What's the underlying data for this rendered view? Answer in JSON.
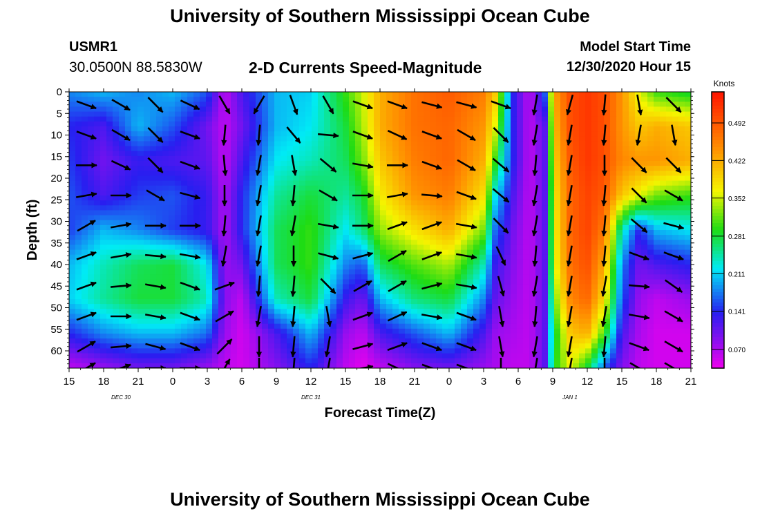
{
  "header": {
    "title_top": "University of Southern Mississippi Ocean Cube",
    "title_bottom": "University of Southern Mississippi Ocean Cube",
    "station_id": "USMR1",
    "station_coords": "30.0500N 88.5830W",
    "subtitle": "2-D Currents Speed-Magnitude",
    "model_label": "Model Start Time",
    "model_start": "12/30/2020 Hour 15"
  },
  "chart_data": {
    "type": "heatmap",
    "title": "2-D Currents Speed-Magnitude",
    "xlabel": "Forecast Time(Z)",
    "ylabel": "Depth (ft)",
    "x_tick_labels": [
      "15",
      "18",
      "21",
      "0",
      "3",
      "6",
      "9",
      "12",
      "15",
      "18",
      "21",
      "0",
      "3",
      "6",
      "9",
      "12",
      "15",
      "18",
      "21"
    ],
    "x_tick_hours_from_start": [
      0,
      3,
      6,
      9,
      12,
      15,
      18,
      21,
      24,
      27,
      30,
      33,
      36,
      39,
      42,
      45,
      48,
      51,
      54
    ],
    "date_labels": [
      {
        "text": "DEC 30",
        "hours_from_start": 4.5
      },
      {
        "text": "DEC 31",
        "hours_from_start": 21
      },
      {
        "text": "JAN 1",
        "hours_from_start": 43.5
      }
    ],
    "y_ticks": [
      0,
      5,
      10,
      15,
      20,
      25,
      30,
      35,
      40,
      45,
      50,
      55,
      60
    ],
    "ylim": [
      0,
      64
    ],
    "xlim_hours": [
      0,
      54
    ],
    "colorbar": {
      "unit": "Knots",
      "range": [
        0.035,
        0.55
      ],
      "ticks": [
        "0.070",
        "0.141",
        "0.211",
        "0.281",
        "0.352",
        "0.422",
        "0.492"
      ],
      "tick_values": [
        0.07,
        0.141,
        0.211,
        0.281,
        0.352,
        0.422,
        0.492
      ]
    },
    "speed_grid_note": "speed (knots) by depth row (ft) and forecast hour",
    "grid_depths": [
      0,
      8,
      16,
      24,
      32,
      40,
      48,
      56,
      64
    ],
    "grid_hours": [
      0,
      3,
      6,
      9,
      12,
      13.5,
      15,
      18,
      21,
      24,
      25.5,
      27,
      30,
      33,
      36,
      37,
      38.5,
      40,
      41.5,
      42,
      43.5,
      45,
      46.5,
      48,
      49.5,
      51,
      54
    ],
    "speed": [
      [
        0.18,
        0.2,
        0.18,
        0.2,
        0.16,
        0.06,
        0.12,
        0.2,
        0.21,
        0.3,
        0.35,
        0.42,
        0.47,
        0.49,
        0.46,
        0.4,
        0.14,
        0.06,
        0.18,
        0.42,
        0.5,
        0.52,
        0.5,
        0.44,
        0.36,
        0.3,
        0.28
      ],
      [
        0.14,
        0.12,
        0.2,
        0.16,
        0.1,
        0.06,
        0.1,
        0.2,
        0.22,
        0.28,
        0.34,
        0.42,
        0.47,
        0.48,
        0.44,
        0.36,
        0.14,
        0.06,
        0.12,
        0.4,
        0.5,
        0.52,
        0.5,
        0.44,
        0.4,
        0.42,
        0.4
      ],
      [
        0.15,
        0.1,
        0.13,
        0.12,
        0.11,
        0.06,
        0.12,
        0.22,
        0.24,
        0.27,
        0.32,
        0.4,
        0.46,
        0.48,
        0.42,
        0.3,
        0.14,
        0.06,
        0.12,
        0.38,
        0.49,
        0.52,
        0.5,
        0.45,
        0.44,
        0.44,
        0.42
      ],
      [
        0.16,
        0.12,
        0.15,
        0.16,
        0.13,
        0.07,
        0.14,
        0.25,
        0.28,
        0.25,
        0.28,
        0.37,
        0.44,
        0.46,
        0.38,
        0.22,
        0.12,
        0.06,
        0.12,
        0.36,
        0.48,
        0.51,
        0.49,
        0.4,
        0.36,
        0.32,
        0.3
      ],
      [
        0.15,
        0.2,
        0.18,
        0.15,
        0.13,
        0.07,
        0.14,
        0.27,
        0.3,
        0.22,
        0.26,
        0.33,
        0.38,
        0.42,
        0.32,
        0.17,
        0.1,
        0.06,
        0.12,
        0.35,
        0.48,
        0.51,
        0.46,
        0.24,
        0.14,
        0.2,
        0.22
      ],
      [
        0.2,
        0.24,
        0.27,
        0.28,
        0.22,
        0.08,
        0.1,
        0.27,
        0.3,
        0.18,
        0.16,
        0.27,
        0.31,
        0.34,
        0.24,
        0.13,
        0.09,
        0.06,
        0.12,
        0.34,
        0.47,
        0.5,
        0.42,
        0.18,
        0.1,
        0.12,
        0.14
      ],
      [
        0.21,
        0.25,
        0.28,
        0.28,
        0.24,
        0.09,
        0.06,
        0.24,
        0.28,
        0.13,
        0.1,
        0.2,
        0.26,
        0.28,
        0.18,
        0.11,
        0.08,
        0.06,
        0.12,
        0.3,
        0.45,
        0.48,
        0.38,
        0.16,
        0.08,
        0.06,
        0.08
      ],
      [
        0.14,
        0.18,
        0.2,
        0.2,
        0.17,
        0.08,
        0.05,
        0.12,
        0.2,
        0.08,
        0.06,
        0.12,
        0.16,
        0.2,
        0.12,
        0.08,
        0.07,
        0.06,
        0.12,
        0.26,
        0.4,
        0.42,
        0.3,
        0.12,
        0.07,
        0.05,
        0.05
      ],
      [
        0.06,
        0.08,
        0.1,
        0.1,
        0.08,
        0.06,
        0.05,
        0.09,
        0.14,
        0.06,
        0.04,
        0.06,
        0.09,
        0.1,
        0.08,
        0.07,
        0.06,
        0.06,
        0.12,
        0.28,
        0.36,
        0.28,
        0.16,
        0.09,
        0.06,
        0.05,
        0.05
      ]
    ],
    "vector_columns_hours": [
      1.5,
      4.5,
      7.5,
      10.5,
      13.5,
      16.5,
      19.5,
      22.5,
      25.5,
      28.5,
      31.5,
      34.5,
      37.5,
      40.5,
      43.5,
      46.5,
      49.5,
      52.5
    ],
    "vector_rows_depth": [
      3,
      10,
      17,
      24,
      31,
      38,
      45,
      52,
      59,
      64
    ],
    "vector_angles_deg": [
      [
        -20,
        -30,
        -45,
        -25,
        -60,
        -120,
        -70,
        -60,
        -20,
        -20,
        -15,
        -15,
        -20,
        -100,
        -105,
        -95,
        -80,
        -45
      ],
      [
        -20,
        -30,
        -45,
        -20,
        -95,
        -95,
        -50,
        -5,
        -20,
        -25,
        -20,
        -30,
        -45,
        -100,
        -100,
        -95,
        -100,
        -80
      ],
      [
        0,
        -25,
        -45,
        -20,
        -85,
        -100,
        -80,
        -40,
        -10,
        0,
        -20,
        -30,
        -40,
        -95,
        -100,
        -90,
        -45,
        -45
      ],
      [
        10,
        0,
        -30,
        -15,
        -90,
        -100,
        -95,
        -30,
        0,
        10,
        -5,
        -20,
        -40,
        -100,
        -100,
        -95,
        -45,
        -30
      ],
      [
        30,
        10,
        0,
        0,
        -95,
        -100,
        -100,
        -10,
        0,
        20,
        20,
        -10,
        -45,
        -100,
        -100,
        -95,
        -40,
        -15
      ],
      [
        20,
        10,
        -5,
        -10,
        -100,
        -100,
        -90,
        -15,
        15,
        30,
        20,
        -10,
        -65,
        -95,
        -100,
        -95,
        -20,
        -20
      ],
      [
        20,
        5,
        -10,
        -20,
        20,
        -95,
        -95,
        -45,
        30,
        30,
        15,
        -10,
        -75,
        -100,
        -100,
        -100,
        -5,
        -35
      ],
      [
        20,
        0,
        -10,
        -20,
        30,
        -100,
        -95,
        -80,
        20,
        25,
        -10,
        -20,
        -80,
        -95,
        -100,
        -100,
        -10,
        -30
      ],
      [
        30,
        5,
        -15,
        -20,
        45,
        -90,
        -95,
        -100,
        15,
        20,
        -20,
        -20,
        -80,
        -100,
        -100,
        -95,
        -20,
        -30
      ],
      [
        30,
        20,
        0,
        0,
        60,
        -90,
        -95,
        -100,
        10,
        -25,
        -20,
        -20,
        -90,
        -100,
        -100,
        -90,
        -30,
        -30
      ]
    ]
  }
}
